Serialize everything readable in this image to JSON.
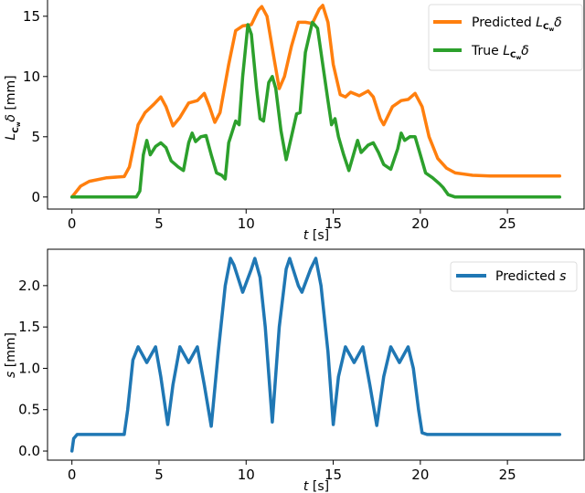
{
  "colors": {
    "predicted_delta": "#ff7f0e",
    "true_delta": "#2ca02c",
    "predicted_s": "#1f77b4"
  },
  "chart_data": [
    {
      "type": "line",
      "xlabel": {
        "var": "t",
        "unit": " [s]"
      },
      "ylabel": {
        "symbol": "L",
        "sub": "C",
        "subsub": "w",
        "var": "δ",
        "unit": " [mm]"
      },
      "xlim": [
        -1.4,
        29.4
      ],
      "ylim": [
        -1,
        16.5
      ],
      "xticks": [
        0,
        5,
        10,
        15,
        20,
        25
      ],
      "yticks": [
        0,
        5,
        10,
        15
      ],
      "legend_position": "top-right",
      "series": [
        {
          "name": "Predicted",
          "label": {
            "prefix": "Predicted ",
            "symbol": "L",
            "sub": "C",
            "subsub": "w",
            "suffix": "δ"
          },
          "color_key": "predicted_delta",
          "points": [
            [
              0,
              0
            ],
            [
              0.5,
              0.9
            ],
            [
              1,
              1.3
            ],
            [
              2,
              1.6
            ],
            [
              3,
              1.7
            ],
            [
              3.3,
              2.5
            ],
            [
              3.8,
              6
            ],
            [
              4.2,
              7
            ],
            [
              4.7,
              7.7
            ],
            [
              5.1,
              8.3
            ],
            [
              5.4,
              7.5
            ],
            [
              5.8,
              5.9
            ],
            [
              6.2,
              6.6
            ],
            [
              6.7,
              7.8
            ],
            [
              7.2,
              8
            ],
            [
              7.6,
              8.6
            ],
            [
              7.9,
              7.5
            ],
            [
              8.2,
              6.2
            ],
            [
              8.5,
              7
            ],
            [
              9,
              11
            ],
            [
              9.4,
              13.8
            ],
            [
              9.8,
              14.2
            ],
            [
              10.3,
              14.3
            ],
            [
              10.7,
              15.5
            ],
            [
              10.9,
              15.8
            ],
            [
              11.2,
              15
            ],
            [
              11.6,
              11.5
            ],
            [
              11.9,
              9
            ],
            [
              12.2,
              10
            ],
            [
              12.6,
              12.5
            ],
            [
              13,
              14.5
            ],
            [
              13.4,
              14.5
            ],
            [
              13.8,
              14.4
            ],
            [
              14.2,
              15.6
            ],
            [
              14.4,
              15.9
            ],
            [
              14.7,
              14.5
            ],
            [
              15,
              11
            ],
            [
              15.4,
              8.5
            ],
            [
              15.7,
              8.3
            ],
            [
              16,
              8.7
            ],
            [
              16.5,
              8.4
            ],
            [
              17,
              8.8
            ],
            [
              17.3,
              8.3
            ],
            [
              17.7,
              6.5
            ],
            [
              17.9,
              6
            ],
            [
              18.4,
              7.5
            ],
            [
              18.9,
              8
            ],
            [
              19.3,
              8.1
            ],
            [
              19.7,
              8.6
            ],
            [
              20.1,
              7.5
            ],
            [
              20.5,
              5
            ],
            [
              21,
              3.2
            ],
            [
              21.5,
              2.4
            ],
            [
              22,
              2
            ],
            [
              23,
              1.8
            ],
            [
              24,
              1.75
            ],
            [
              28,
              1.75
            ]
          ]
        },
        {
          "name": "True",
          "label": {
            "prefix": "True ",
            "symbol": "L",
            "sub": "C",
            "subsub": "w",
            "suffix": "δ"
          },
          "color_key": "true_delta",
          "points": [
            [
              0,
              0
            ],
            [
              3.7,
              0
            ],
            [
              3.9,
              0.5
            ],
            [
              4.1,
              3.5
            ],
            [
              4.3,
              4.7
            ],
            [
              4.5,
              3.5
            ],
            [
              4.8,
              4.2
            ],
            [
              5.1,
              4.5
            ],
            [
              5.4,
              4.1
            ],
            [
              5.7,
              3
            ],
            [
              6.1,
              2.5
            ],
            [
              6.4,
              2.2
            ],
            [
              6.7,
              4.5
            ],
            [
              6.9,
              5.3
            ],
            [
              7.1,
              4.6
            ],
            [
              7.4,
              5
            ],
            [
              7.7,
              5.1
            ],
            [
              8,
              3.5
            ],
            [
              8.3,
              2
            ],
            [
              8.6,
              1.8
            ],
            [
              8.8,
              1.5
            ],
            [
              9,
              4.5
            ],
            [
              9.4,
              6.3
            ],
            [
              9.6,
              6
            ],
            [
              9.8,
              10
            ],
            [
              10.1,
              14.3
            ],
            [
              10.3,
              13.5
            ],
            [
              10.6,
              9
            ],
            [
              10.8,
              6.5
            ],
            [
              11,
              6.3
            ],
            [
              11.3,
              9.5
            ],
            [
              11.5,
              10
            ],
            [
              11.7,
              9
            ],
            [
              12,
              5.5
            ],
            [
              12.3,
              3.1
            ],
            [
              12.6,
              5
            ],
            [
              12.9,
              6.9
            ],
            [
              13.1,
              7
            ],
            [
              13.4,
              12
            ],
            [
              13.8,
              14.5
            ],
            [
              14.1,
              14
            ],
            [
              14.3,
              12
            ],
            [
              14.7,
              8
            ],
            [
              14.9,
              6
            ],
            [
              15.1,
              6.5
            ],
            [
              15.3,
              5
            ],
            [
              15.6,
              3.5
            ],
            [
              15.9,
              2.2
            ],
            [
              16.2,
              3.7
            ],
            [
              16.4,
              4.7
            ],
            [
              16.6,
              3.7
            ],
            [
              17,
              4.3
            ],
            [
              17.3,
              4.5
            ],
            [
              17.6,
              3.7
            ],
            [
              17.9,
              2.7
            ],
            [
              18.3,
              2.3
            ],
            [
              18.7,
              4
            ],
            [
              18.9,
              5.3
            ],
            [
              19.1,
              4.7
            ],
            [
              19.4,
              5
            ],
            [
              19.7,
              5
            ],
            [
              20,
              3.5
            ],
            [
              20.3,
              2
            ],
            [
              20.7,
              1.6
            ],
            [
              21.1,
              1.1
            ],
            [
              21.3,
              0.8
            ],
            [
              21.6,
              0.2
            ],
            [
              22,
              0
            ],
            [
              28,
              0
            ]
          ]
        }
      ]
    },
    {
      "type": "line",
      "xlabel": {
        "var": "t",
        "unit": " [s]"
      },
      "ylabel": {
        "var": "s",
        "unit": " [mm]"
      },
      "xlim": [
        -1.4,
        29.4
      ],
      "ylim": [
        -0.11,
        2.44
      ],
      "xticks": [
        0,
        5,
        10,
        15,
        20,
        25
      ],
      "yticks": [
        "0.0",
        "0.5",
        "1.0",
        "1.5",
        "2.0"
      ],
      "legend_position": "top-right",
      "series": [
        {
          "name": "Predicted s",
          "label": {
            "prefix": "Predicted ",
            "var": "s"
          },
          "color_key": "predicted_s",
          "points": [
            [
              0,
              0
            ],
            [
              0.1,
              0.15
            ],
            [
              0.3,
              0.2
            ],
            [
              3,
              0.2
            ],
            [
              3.2,
              0.5
            ],
            [
              3.5,
              1.1
            ],
            [
              3.8,
              1.26
            ],
            [
              4.3,
              1.07
            ],
            [
              4.8,
              1.26
            ],
            [
              5.1,
              0.9
            ],
            [
              5.5,
              0.32
            ],
            [
              5.8,
              0.8
            ],
            [
              6.2,
              1.26
            ],
            [
              6.7,
              1.07
            ],
            [
              7.2,
              1.26
            ],
            [
              7.6,
              0.8
            ],
            [
              8,
              0.3
            ],
            [
              8.4,
              1.2
            ],
            [
              8.8,
              2
            ],
            [
              9.1,
              2.33
            ],
            [
              9.3,
              2.25
            ],
            [
              9.8,
              1.92
            ],
            [
              10.3,
              2.2
            ],
            [
              10.5,
              2.33
            ],
            [
              10.8,
              2.1
            ],
            [
              11.1,
              1.5
            ],
            [
              11.5,
              0.35
            ],
            [
              11.9,
              1.5
            ],
            [
              12.3,
              2.2
            ],
            [
              12.5,
              2.33
            ],
            [
              13,
              2.0
            ],
            [
              13.2,
              1.92
            ],
            [
              13.7,
              2.2
            ],
            [
              14,
              2.33
            ],
            [
              14.3,
              2.0
            ],
            [
              14.7,
              1.2
            ],
            [
              15,
              0.32
            ],
            [
              15.3,
              0.9
            ],
            [
              15.7,
              1.26
            ],
            [
              16.2,
              1.07
            ],
            [
              16.7,
              1.26
            ],
            [
              17.1,
              0.8
            ],
            [
              17.5,
              0.31
            ],
            [
              17.9,
              0.9
            ],
            [
              18.3,
              1.26
            ],
            [
              18.8,
              1.07
            ],
            [
              19.3,
              1.26
            ],
            [
              19.6,
              1.0
            ],
            [
              19.9,
              0.5
            ],
            [
              20.1,
              0.22
            ],
            [
              20.4,
              0.2
            ],
            [
              28,
              0.2
            ]
          ]
        }
      ]
    }
  ]
}
